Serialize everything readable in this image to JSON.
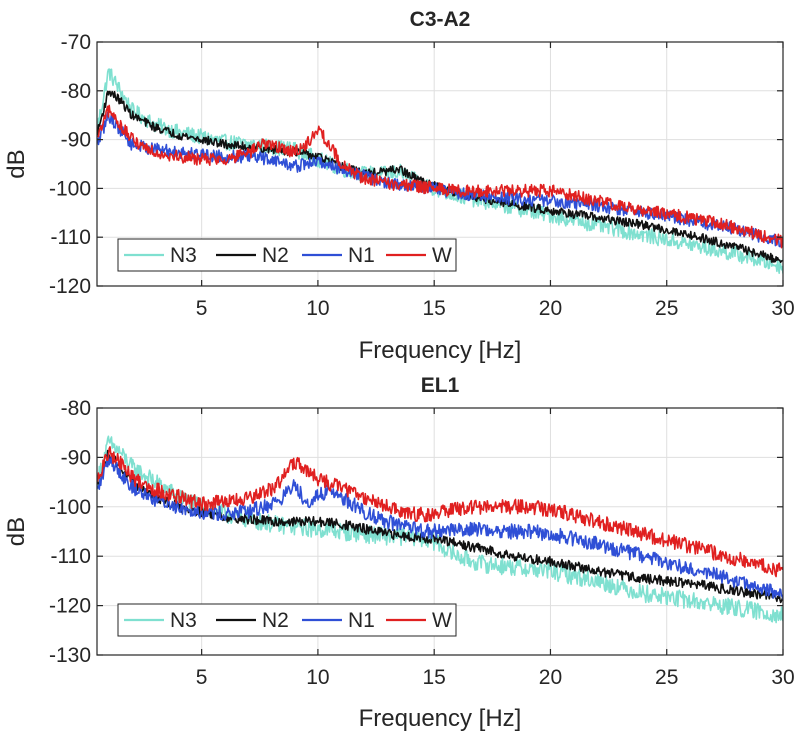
{
  "chart_data": [
    {
      "type": "line",
      "title": "C3-A2",
      "xlabel": "Frequency [Hz]",
      "ylabel": "dB",
      "xlim": [
        0.5,
        30
      ],
      "ylim": [
        -120,
        -70
      ],
      "xticks": [
        5,
        10,
        15,
        20,
        25,
        30
      ],
      "yticks": [
        -70,
        -80,
        -90,
        -100,
        -110,
        -120
      ],
      "grid": true,
      "legend_position": "bottom-left",
      "legend_orientation": "horizontal",
      "series": [
        {
          "name": "N3",
          "color": "#7fe0d0",
          "noise": 1.6,
          "x": [
            0.5,
            1.0,
            1.5,
            2,
            3,
            4,
            5,
            6,
            7,
            8,
            9,
            10,
            11,
            12,
            13,
            13.5,
            14,
            15,
            16,
            18,
            20,
            22,
            24,
            26,
            28,
            30
          ],
          "y": [
            -88,
            -76,
            -80,
            -84,
            -87,
            -88.5,
            -89.5,
            -90.5,
            -91,
            -91.5,
            -92,
            -94,
            -96,
            -97,
            -97,
            -96.5,
            -98,
            -100,
            -101.5,
            -103.5,
            -105.5,
            -107.5,
            -109.5,
            -111.5,
            -113.5,
            -116
          ]
        },
        {
          "name": "N2",
          "color": "#111111",
          "noise": 0.9,
          "x": [
            0.5,
            1.0,
            1.5,
            2,
            3,
            4,
            5,
            6,
            7,
            8,
            9,
            10,
            11,
            12,
            13,
            13.5,
            14,
            15,
            16,
            18,
            20,
            22,
            24,
            26,
            28,
            30
          ],
          "y": [
            -89,
            -80,
            -82,
            -85,
            -87.5,
            -89,
            -90,
            -91,
            -91.5,
            -92,
            -92.5,
            -93.5,
            -95.5,
            -97,
            -96.5,
            -96,
            -97.5,
            -99.5,
            -101,
            -103,
            -104.5,
            -106,
            -107.5,
            -109.5,
            -112,
            -115
          ]
        },
        {
          "name": "N1",
          "color": "#2f4fd6",
          "noise": 1.3,
          "x": [
            0.5,
            1.0,
            1.5,
            2,
            3,
            4,
            5,
            6,
            7,
            8,
            9,
            10,
            11,
            12,
            13,
            14,
            15,
            16,
            18,
            20,
            22,
            24,
            26,
            28,
            30
          ],
          "y": [
            -91,
            -85,
            -88,
            -91,
            -92,
            -92.5,
            -93,
            -93.5,
            -93.5,
            -94,
            -95.5,
            -94.5,
            -96,
            -97.5,
            -99,
            -99.5,
            -100,
            -101,
            -102,
            -102.5,
            -103.5,
            -105,
            -106.5,
            -108.5,
            -111
          ]
        },
        {
          "name": "W",
          "color": "#e02020",
          "noise": 1.3,
          "x": [
            0.5,
            1.0,
            1.5,
            2,
            3,
            4,
            5,
            6,
            7,
            7.7,
            8.5,
            9,
            9.5,
            10,
            10.5,
            11,
            12,
            13,
            14,
            15,
            16,
            18,
            20,
            22,
            24,
            26,
            28,
            30
          ],
          "y": [
            -90,
            -84,
            -87,
            -90,
            -92.5,
            -93.5,
            -94,
            -94,
            -93,
            -90.5,
            -92,
            -92.5,
            -91,
            -88,
            -91,
            -95,
            -98,
            -99,
            -99.5,
            -100,
            -100.5,
            -100.5,
            -100.5,
            -102.5,
            -104.5,
            -106,
            -108,
            -111
          ]
        }
      ],
      "legend": [
        "N3",
        "N2",
        "N1",
        "W"
      ]
    },
    {
      "type": "line",
      "title": "EL1",
      "xlabel": "Frequency [Hz]",
      "ylabel": "dB",
      "xlim": [
        0.5,
        30
      ],
      "ylim": [
        -130,
        -80
      ],
      "xticks": [
        5,
        10,
        15,
        20,
        25,
        30
      ],
      "yticks": [
        -80,
        -90,
        -100,
        -110,
        -120,
        -130
      ],
      "grid": true,
      "legend_position": "bottom-left",
      "legend_orientation": "horizontal",
      "series": [
        {
          "name": "N3",
          "color": "#7fe0d0",
          "noise": 1.8,
          "x": [
            0.5,
            1.0,
            1.5,
            2,
            3,
            4,
            5,
            6,
            7,
            8,
            9,
            10,
            11,
            12,
            13,
            14,
            15,
            16,
            17,
            18,
            19,
            20,
            22,
            24,
            26,
            28,
            30
          ],
          "y": [
            -95,
            -87,
            -89,
            -92,
            -95,
            -98,
            -100,
            -101.5,
            -102.5,
            -103.5,
            -104,
            -104.5,
            -105,
            -105.5,
            -106,
            -106,
            -107,
            -110,
            -111.5,
            -112,
            -112.5,
            -113,
            -115,
            -117.5,
            -119,
            -120.5,
            -122
          ]
        },
        {
          "name": "N2",
          "color": "#111111",
          "noise": 1.0,
          "x": [
            0.5,
            1.0,
            1.5,
            2,
            3,
            4,
            5,
            6,
            7,
            8,
            9,
            10,
            11,
            12,
            13,
            14,
            15,
            16,
            17,
            18,
            19,
            20,
            22,
            24,
            26,
            28,
            30
          ],
          "y": [
            -96,
            -89,
            -92,
            -95,
            -98,
            -100,
            -101,
            -102,
            -102.5,
            -103,
            -103,
            -103,
            -103.5,
            -104.5,
            -105.5,
            -106,
            -106.5,
            -107.5,
            -108.5,
            -109.5,
            -110.5,
            -111,
            -113,
            -114.5,
            -115.5,
            -117,
            -118.5
          ]
        },
        {
          "name": "N1",
          "color": "#2f4fd6",
          "noise": 1.5,
          "x": [
            0.5,
            1.0,
            1.5,
            2,
            3,
            4,
            5,
            6,
            7,
            8,
            8.5,
            9,
            9.5,
            10,
            10.5,
            11,
            12,
            13,
            14,
            15,
            16,
            17,
            18,
            19,
            20,
            22,
            24,
            26,
            28,
            30
          ],
          "y": [
            -97,
            -90,
            -93,
            -96,
            -98.5,
            -100,
            -101,
            -101.5,
            -101,
            -99.5,
            -98,
            -95.5,
            -99,
            -98,
            -96.5,
            -98,
            -101,
            -103,
            -104.5,
            -105,
            -104.5,
            -104.5,
            -105,
            -105,
            -105.5,
            -107.5,
            -110,
            -112.5,
            -115,
            -118
          ]
        },
        {
          "name": "W",
          "color": "#e02020",
          "noise": 1.5,
          "x": [
            0.5,
            1.0,
            1.5,
            2,
            3,
            4,
            5,
            6,
            7,
            8,
            8.5,
            9,
            9.5,
            10,
            11,
            12,
            13,
            14,
            15,
            16,
            17,
            18,
            19,
            20,
            22,
            24,
            26,
            28,
            30
          ],
          "y": [
            -95,
            -89,
            -91,
            -94,
            -96.5,
            -98,
            -99.5,
            -99,
            -98.5,
            -96.5,
            -94,
            -91,
            -92.5,
            -94.5,
            -96,
            -98,
            -100,
            -101.5,
            -101.5,
            -100.5,
            -100,
            -100,
            -100,
            -100.5,
            -103,
            -105.5,
            -108,
            -110.5,
            -113
          ]
        }
      ],
      "legend": [
        "N3",
        "N2",
        "N1",
        "W"
      ]
    }
  ]
}
